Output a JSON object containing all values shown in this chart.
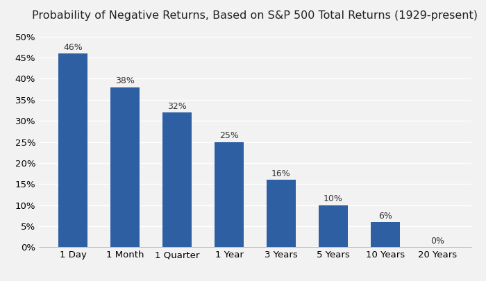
{
  "title": "Probability of Negative Returns, Based on S&P 500 Total Returns (1929-present)",
  "categories": [
    "1 Day",
    "1 Month",
    "1 Quarter",
    "1 Year",
    "3 Years",
    "5 Years",
    "10 Years",
    "20 Years"
  ],
  "values": [
    46,
    38,
    32,
    25,
    16,
    10,
    6,
    0
  ],
  "labels": [
    "46%",
    "38%",
    "32%",
    "25%",
    "16%",
    "10%",
    "6%",
    "0%"
  ],
  "bar_color": "#2E5FA3",
  "background_color": "#F2F2F2",
  "plot_bg_color": "#F2F2F2",
  "grid_color": "#FFFFFF",
  "ylim": [
    0,
    52
  ],
  "yticks": [
    0,
    5,
    10,
    15,
    20,
    25,
    30,
    35,
    40,
    45,
    50
  ],
  "title_fontsize": 11.5,
  "label_fontsize": 9,
  "tick_fontsize": 9.5,
  "bar_width": 0.55
}
